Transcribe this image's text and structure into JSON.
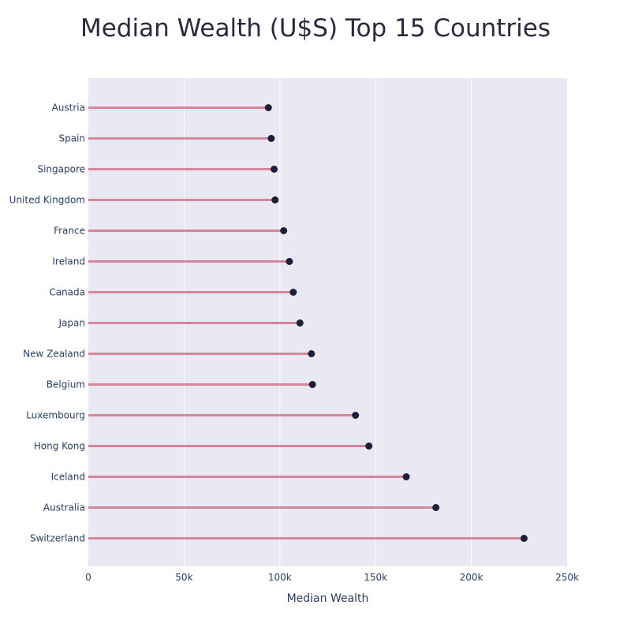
{
  "chart_data": {
    "type": "lollipop",
    "title": "Median Wealth (U$S) Top 15 Countries",
    "xlabel": "Median Wealth",
    "ylabel": "",
    "xlim": [
      0,
      250000
    ],
    "x_ticks": [
      {
        "value": 0,
        "label": "0"
      },
      {
        "value": 50000,
        "label": "50k"
      },
      {
        "value": 100000,
        "label": "100k"
      },
      {
        "value": 150000,
        "label": "150k"
      },
      {
        "value": 200000,
        "label": "200k"
      },
      {
        "value": 250000,
        "label": "250k"
      }
    ],
    "grid": true,
    "colors": {
      "plot_bg": "#e9e8f3",
      "stem": "#d5869c",
      "marker": "#1f1d3a",
      "grid": "#ffffff"
    },
    "categories": [
      "Austria",
      "Spain",
      "Singapore",
      "United Kingdom",
      "France",
      "Ireland",
      "Canada",
      "Japan",
      "New Zealand",
      "Belgium",
      "Luxembourg",
      "Hong Kong",
      "Iceland",
      "Australia",
      "Switzerland"
    ],
    "values": [
      94000,
      95500,
      97000,
      97500,
      102000,
      105000,
      107000,
      110500,
      116500,
      117000,
      139500,
      146500,
      166000,
      181500,
      227500
    ]
  }
}
